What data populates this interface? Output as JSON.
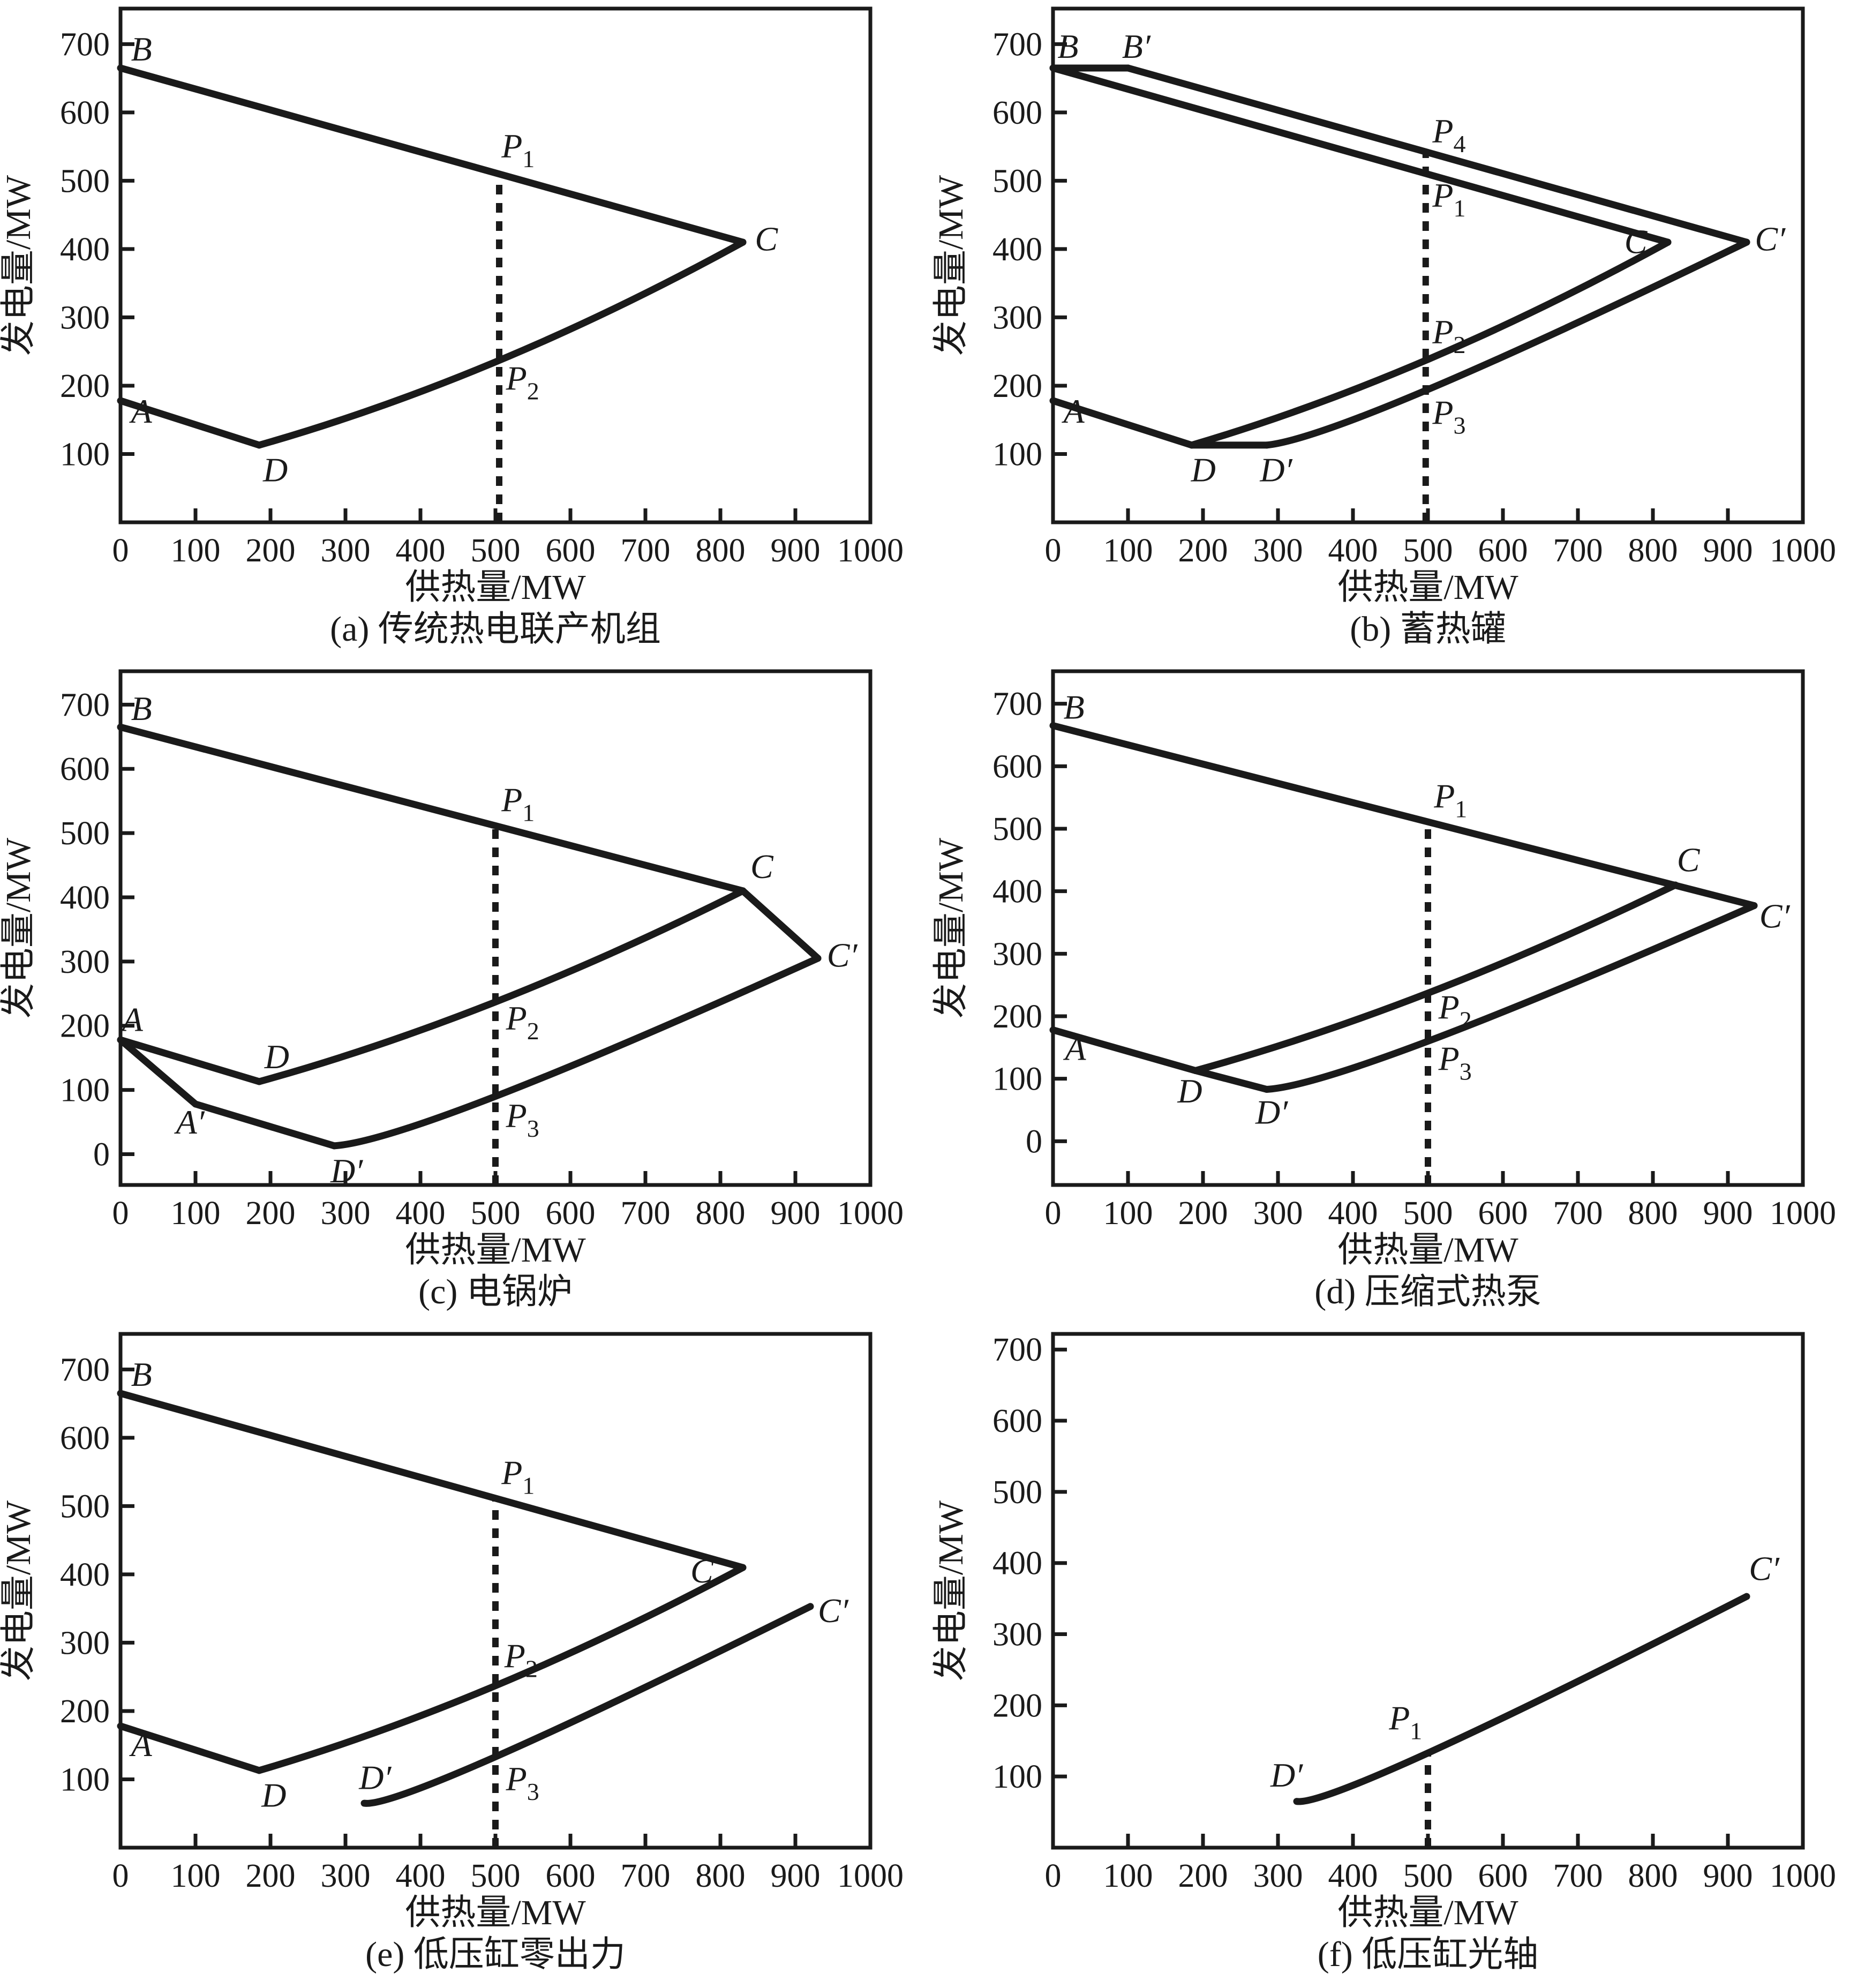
{
  "style": {
    "ink": "#1a1a1a",
    "background": "#ffffff"
  },
  "chart_data": [
    {
      "id": "a",
      "type": "line",
      "caption": "(a) 传统热电联产机组",
      "xlabel": "供热量/MW",
      "ylabel": "发电量/MW",
      "xlim": [
        0,
        1000
      ],
      "ylim": [
        0,
        752
      ],
      "xticks": [
        0,
        100,
        200,
        300,
        400,
        500,
        600,
        700,
        800,
        900,
        1000
      ],
      "yticks": [
        100,
        200,
        300,
        400,
        500,
        600,
        700
      ],
      "series": [
        {
          "name": "B-C",
          "kind": "line",
          "points": [
            [
              0,
              665
            ],
            [
              830,
              410
            ]
          ]
        },
        {
          "name": "A-D",
          "kind": "line",
          "points": [
            [
              0,
              178
            ],
            [
              185,
              113
            ]
          ]
        },
        {
          "name": "D-C",
          "kind": "quad",
          "points": [
            [
              185,
              113
            ],
            [
              505,
              237
            ],
            [
              830,
              410
            ]
          ]
        }
      ],
      "dashed_guide": {
        "x": 505,
        "y_from": 0,
        "y_to": 510
      },
      "point_labels": [
        {
          "text": "B",
          "x": 14,
          "y": 676
        },
        {
          "text": "A",
          "x": 14,
          "y": 146
        },
        {
          "text": "D",
          "x": 190,
          "y": 60
        },
        {
          "text": "C",
          "x": 846,
          "y": 398
        },
        {
          "text": "P",
          "sub": "1",
          "x": 508,
          "y": 534
        },
        {
          "text": "P",
          "sub": "2",
          "x": 514,
          "y": 194
        }
      ]
    },
    {
      "id": "b",
      "type": "line",
      "caption": "(b) 蓄热罐",
      "xlabel": "供热量/MW",
      "ylabel": "发电量/MW",
      "xlim": [
        0,
        1000
      ],
      "ylim": [
        0,
        752
      ],
      "xticks": [
        0,
        100,
        200,
        300,
        400,
        500,
        600,
        700,
        800,
        900,
        1000
      ],
      "yticks": [
        100,
        200,
        300,
        400,
        500,
        600,
        700
      ],
      "series": [
        {
          "name": "B-B'",
          "kind": "line",
          "points": [
            [
              0,
              665
            ],
            [
              100,
              665
            ]
          ]
        },
        {
          "name": "B-C",
          "kind": "line",
          "points": [
            [
              0,
              665
            ],
            [
              820,
              410
            ]
          ]
        },
        {
          "name": "B'-C'",
          "kind": "line",
          "points": [
            [
              100,
              665
            ],
            [
              925,
              410
            ]
          ]
        },
        {
          "name": "A-D",
          "kind": "line",
          "points": [
            [
              0,
              178
            ],
            [
              185,
              113
            ]
          ]
        },
        {
          "name": "D-D'",
          "kind": "line",
          "points": [
            [
              185,
              113
            ],
            [
              285,
              113
            ]
          ]
        },
        {
          "name": "D-C",
          "kind": "quad",
          "points": [
            [
              185,
              113
            ],
            [
              497,
              237
            ],
            [
              820,
              410
            ]
          ]
        },
        {
          "name": "D'-C'",
          "kind": "quad",
          "points": [
            [
              285,
              113
            ],
            [
              497,
              193
            ],
            [
              925,
              410
            ]
          ]
        }
      ],
      "dashed_guide": {
        "x": 497,
        "y_from": 0,
        "y_to": 541
      },
      "point_labels": [
        {
          "text": "B",
          "x": 6,
          "y": 680
        },
        {
          "text": "B′",
          "x": 92,
          "y": 680
        },
        {
          "text": "A",
          "x": 14,
          "y": 146
        },
        {
          "text": "D",
          "x": 184,
          "y": 60
        },
        {
          "text": "D′",
          "x": 276,
          "y": 60
        },
        {
          "text": "C",
          "x": 762,
          "y": 394
        },
        {
          "text": "C′",
          "x": 936,
          "y": 398
        },
        {
          "text": "P",
          "sub": "4",
          "x": 506,
          "y": 556
        },
        {
          "text": "P",
          "sub": "1",
          "x": 506,
          "y": 462
        },
        {
          "text": "P",
          "sub": "2",
          "x": 506,
          "y": 262
        },
        {
          "text": "P",
          "sub": "3",
          "x": 506,
          "y": 144
        }
      ]
    },
    {
      "id": "c",
      "type": "line",
      "caption": "(c) 电锅炉",
      "xlabel": "供热量/MW",
      "ylabel": "发电量/MW",
      "xlim": [
        0,
        1000
      ],
      "ylim": [
        -48,
        752
      ],
      "xticks": [
        0,
        100,
        200,
        300,
        400,
        500,
        600,
        700,
        800,
        900,
        1000
      ],
      "yticks": [
        0,
        100,
        200,
        300,
        400,
        500,
        600,
        700
      ],
      "series": [
        {
          "name": "B-C",
          "kind": "line",
          "points": [
            [
              0,
              665
            ],
            [
              830,
              410
            ]
          ]
        },
        {
          "name": "C-C'",
          "kind": "line",
          "points": [
            [
              830,
              410
            ],
            [
              930,
              305
            ]
          ]
        },
        {
          "name": "A-D",
          "kind": "line",
          "points": [
            [
              0,
              178
            ],
            [
              185,
              113
            ]
          ]
        },
        {
          "name": "D-C",
          "kind": "quad",
          "points": [
            [
              185,
              113
            ],
            [
              500,
              237
            ],
            [
              830,
              410
            ]
          ]
        },
        {
          "name": "A-A'",
          "kind": "line",
          "points": [
            [
              0,
              178
            ],
            [
              100,
              78
            ]
          ]
        },
        {
          "name": "A'-D'",
          "kind": "line",
          "points": [
            [
              100,
              78
            ],
            [
              285,
              13
            ]
          ]
        },
        {
          "name": "D'-C'",
          "kind": "quad",
          "points": [
            [
              285,
              13
            ],
            [
              500,
              90
            ],
            [
              930,
              305
            ]
          ]
        }
      ],
      "dashed_guide": {
        "x": 500,
        "y_from": -48,
        "y_to": 511
      },
      "point_labels": [
        {
          "text": "B",
          "x": 14,
          "y": 676
        },
        {
          "text": "A",
          "x": 2,
          "y": 192
        },
        {
          "text": "D",
          "x": 192,
          "y": 134
        },
        {
          "text": "A′",
          "x": 74,
          "y": 32
        },
        {
          "text": "D′",
          "x": 280,
          "y": -44
        },
        {
          "text": "C",
          "x": 840,
          "y": 430
        },
        {
          "text": "C′",
          "x": 942,
          "y": 292
        },
        {
          "text": "P",
          "sub": "1",
          "x": 508,
          "y": 534
        },
        {
          "text": "P",
          "sub": "2",
          "x": 514,
          "y": 194
        },
        {
          "text": "P",
          "sub": "3",
          "x": 514,
          "y": 42
        }
      ]
    },
    {
      "id": "d",
      "type": "line",
      "caption": "(d) 压缩式热泵",
      "xlabel": "供热量/MW",
      "ylabel": "发电量/MW",
      "xlim": [
        0,
        1000
      ],
      "ylim": [
        -70,
        752
      ],
      "xticks": [
        0,
        100,
        200,
        300,
        400,
        500,
        600,
        700,
        800,
        900,
        1000
      ],
      "yticks": [
        0,
        100,
        200,
        300,
        400,
        500,
        600,
        700
      ],
      "series": [
        {
          "name": "B-C-C'",
          "kind": "line",
          "points": [
            [
              0,
              665
            ],
            [
              935,
              377
            ]
          ]
        },
        {
          "name": "A-D",
          "kind": "line",
          "points": [
            [
              0,
              178
            ],
            [
              190,
              113
            ]
          ]
        },
        {
          "name": "D-C",
          "kind": "quad",
          "points": [
            [
              190,
              113
            ],
            [
              500,
              237
            ],
            [
              830,
              410
            ]
          ]
        },
        {
          "name": "D-D'",
          "kind": "line",
          "points": [
            [
              190,
              113
            ],
            [
              285,
              83
            ]
          ]
        },
        {
          "name": "D'-C'",
          "kind": "quad",
          "points": [
            [
              285,
              83
            ],
            [
              500,
              160
            ],
            [
              935,
              377
            ]
          ]
        }
      ],
      "dashed_guide": {
        "x": 500,
        "y_from": -70,
        "y_to": 511
      },
      "point_labels": [
        {
          "text": "B",
          "x": 14,
          "y": 676
        },
        {
          "text": "A",
          "x": 16,
          "y": 130
        },
        {
          "text": "D",
          "x": 166,
          "y": 62
        },
        {
          "text": "D′",
          "x": 270,
          "y": 28
        },
        {
          "text": "C",
          "x": 832,
          "y": 432
        },
        {
          "text": "C′",
          "x": 942,
          "y": 342
        },
        {
          "text": "P",
          "sub": "1",
          "x": 508,
          "y": 534
        },
        {
          "text": "P",
          "sub": "2",
          "x": 514,
          "y": 196
        },
        {
          "text": "P",
          "sub": "3",
          "x": 514,
          "y": 114
        }
      ]
    },
    {
      "id": "e",
      "type": "line",
      "caption": "(e) 低压缸零出力",
      "xlabel": "供热量/MW",
      "ylabel": "发电量/MW",
      "xlim": [
        0,
        1000
      ],
      "ylim": [
        0,
        752
      ],
      "xticks": [
        0,
        100,
        200,
        300,
        400,
        500,
        600,
        700,
        800,
        900,
        1000
      ],
      "yticks": [
        100,
        200,
        300,
        400,
        500,
        600,
        700
      ],
      "series": [
        {
          "name": "B-C",
          "kind": "line",
          "points": [
            [
              0,
              665
            ],
            [
              830,
              410
            ]
          ]
        },
        {
          "name": "A-D",
          "kind": "line",
          "points": [
            [
              0,
              178
            ],
            [
              185,
              113
            ]
          ]
        },
        {
          "name": "D-C",
          "kind": "quad",
          "points": [
            [
              185,
              113
            ],
            [
              500,
              237
            ],
            [
              830,
              410
            ]
          ]
        },
        {
          "name": "D'-C'",
          "kind": "quad",
          "points": [
            [
              325,
              65
            ],
            [
              500,
              133
            ],
            [
              920,
              353
            ]
          ]
        }
      ],
      "dashed_guide": {
        "x": 500,
        "y_from": 0,
        "y_to": 511
      },
      "point_labels": [
        {
          "text": "B",
          "x": 14,
          "y": 676
        },
        {
          "text": "A",
          "x": 14,
          "y": 134
        },
        {
          "text": "D",
          "x": 188,
          "y": 60
        },
        {
          "text": "D′",
          "x": 318,
          "y": 86
        },
        {
          "text": "C",
          "x": 760,
          "y": 388
        },
        {
          "text": "C′",
          "x": 930,
          "y": 330
        },
        {
          "text": "P",
          "sub": "1",
          "x": 508,
          "y": 532
        },
        {
          "text": "P",
          "sub": "2",
          "x": 512,
          "y": 264
        },
        {
          "text": "P",
          "sub": "3",
          "x": 514,
          "y": 84
        }
      ]
    },
    {
      "id": "f",
      "type": "line",
      "caption": "(f) 低压缸光轴",
      "xlabel": "供热量/MW",
      "ylabel": "发电量/MW",
      "xlim": [
        0,
        1000
      ],
      "ylim": [
        0,
        722
      ],
      "xticks": [
        0,
        100,
        200,
        300,
        400,
        500,
        600,
        700,
        800,
        900,
        1000
      ],
      "yticks": [
        100,
        200,
        300,
        400,
        500,
        600,
        700
      ],
      "series": [
        {
          "name": "D'-C'",
          "kind": "quad",
          "points": [
            [
              325,
              65
            ],
            [
              500,
              133
            ],
            [
              925,
              353
            ]
          ]
        }
      ],
      "dashed_guide": {
        "x": 500,
        "y_from": 0,
        "y_to": 133
      },
      "point_labels": [
        {
          "text": "D′",
          "x": 290,
          "y": 86
        },
        {
          "text": "C′",
          "x": 928,
          "y": 376
        },
        {
          "text": "P",
          "sub": "1",
          "x": 448,
          "y": 166
        }
      ]
    }
  ]
}
